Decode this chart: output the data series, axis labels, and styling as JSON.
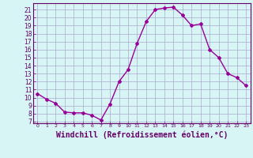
{
  "x": [
    0,
    1,
    2,
    3,
    4,
    5,
    6,
    7,
    8,
    9,
    10,
    11,
    12,
    13,
    14,
    15,
    16,
    17,
    18,
    19,
    20,
    21,
    22,
    23
  ],
  "y": [
    10.5,
    9.8,
    9.3,
    8.2,
    8.1,
    8.1,
    7.8,
    7.2,
    9.2,
    12.0,
    13.5,
    16.8,
    19.5,
    21.0,
    21.2,
    21.3,
    20.3,
    19.0,
    19.2,
    16.0,
    15.0,
    13.0,
    12.5,
    11.5
  ],
  "line_color": "#990099",
  "marker": "D",
  "marker_size": 2,
  "linewidth": 1.0,
  "xlabel": "Windchill (Refroidissement éolien,°C)",
  "xlabel_fontsize": 7,
  "ylabel_ticks": [
    7,
    8,
    9,
    10,
    11,
    12,
    13,
    14,
    15,
    16,
    17,
    18,
    19,
    20,
    21
  ],
  "xtick_labels": [
    "0",
    "1",
    "2",
    "3",
    "4",
    "5",
    "6",
    "7",
    "8",
    "9",
    "10",
    "11",
    "12",
    "13",
    "14",
    "15",
    "16",
    "17",
    "18",
    "19",
    "20",
    "21",
    "22",
    "23"
  ],
  "xlim": [
    -0.5,
    23.5
  ],
  "ylim": [
    6.8,
    21.8
  ],
  "bg_color": "#d8f5f5",
  "grid_color": "#aaaacc",
  "tick_color": "#660066",
  "label_color": "#660066",
  "ytick_fontsize": 5.5,
  "xtick_fontsize": 4.5
}
